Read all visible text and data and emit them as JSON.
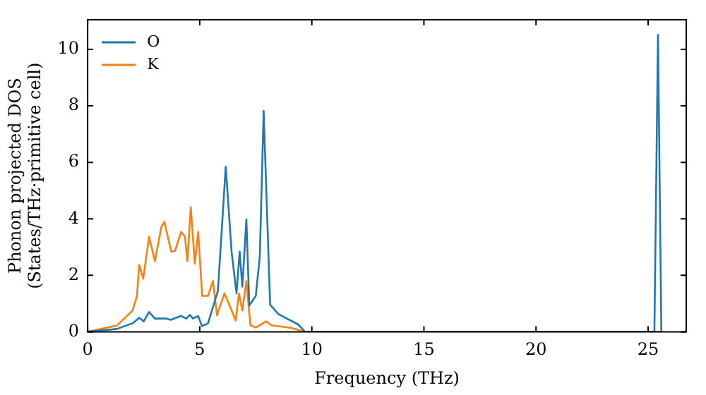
{
  "chart_data": {
    "type": "line",
    "xlabel": "Frequency (THz)",
    "ylabel": "Phonon projected DOS\n(States/THz·primitive cell)",
    "xlim": [
      0,
      26.7
    ],
    "ylim": [
      0,
      11.05
    ],
    "xticks": [
      0,
      5,
      10,
      15,
      20,
      25
    ],
    "yticks": [
      0,
      2,
      4,
      6,
      8,
      10
    ],
    "grid": false,
    "legend": "top left",
    "marker": "none",
    "line_style": "solid",
    "series": [
      {
        "name": "O",
        "color": "#1f77b4",
        "x": [
          0,
          1.3,
          2.0,
          2.3,
          2.5,
          2.74,
          3.0,
          3.5,
          3.7,
          4.17,
          4.4,
          4.56,
          4.7,
          4.93,
          5.1,
          5.37,
          5.81,
          6.16,
          6.42,
          6.64,
          6.78,
          6.9,
          7.08,
          7.21,
          7.5,
          7.68,
          7.85,
          8.14,
          8.5,
          9.39,
          9.7,
          25.28,
          25.44,
          25.59
        ],
        "values": [
          0,
          0.1,
          0.3,
          0.5,
          0.37,
          0.7,
          0.47,
          0.47,
          0.42,
          0.56,
          0.47,
          0.6,
          0.47,
          0.56,
          0.2,
          0.3,
          1.45,
          5.85,
          2.84,
          1.36,
          2.84,
          1.6,
          3.98,
          0.93,
          1.27,
          2.67,
          7.82,
          0.96,
          0.63,
          0.26,
          0,
          0,
          10.52,
          0
        ]
      },
      {
        "name": "K",
        "color": "#ff7f0e",
        "x": [
          0,
          1.3,
          2.0,
          2.2,
          2.3,
          2.48,
          2.74,
          3.0,
          3.29,
          3.42,
          3.73,
          3.9,
          4.17,
          4.34,
          4.45,
          4.6,
          4.78,
          4.93,
          5.11,
          5.37,
          5.59,
          5.77,
          6.1,
          6.38,
          6.6,
          6.75,
          6.9,
          7.08,
          7.26,
          7.5,
          7.96,
          8.2,
          9.06,
          9.7,
          25.59
        ],
        "values": [
          0,
          0.22,
          0.75,
          1.27,
          2.37,
          1.88,
          3.37,
          2.5,
          3.72,
          3.89,
          2.84,
          2.87,
          3.54,
          3.37,
          2.5,
          4.41,
          2.41,
          3.54,
          1.27,
          1.27,
          1.8,
          0.58,
          1.36,
          0.84,
          0.4,
          1.36,
          0.75,
          1.8,
          0.23,
          0.15,
          0.37,
          0.23,
          0.14,
          0,
          0
        ]
      }
    ]
  }
}
